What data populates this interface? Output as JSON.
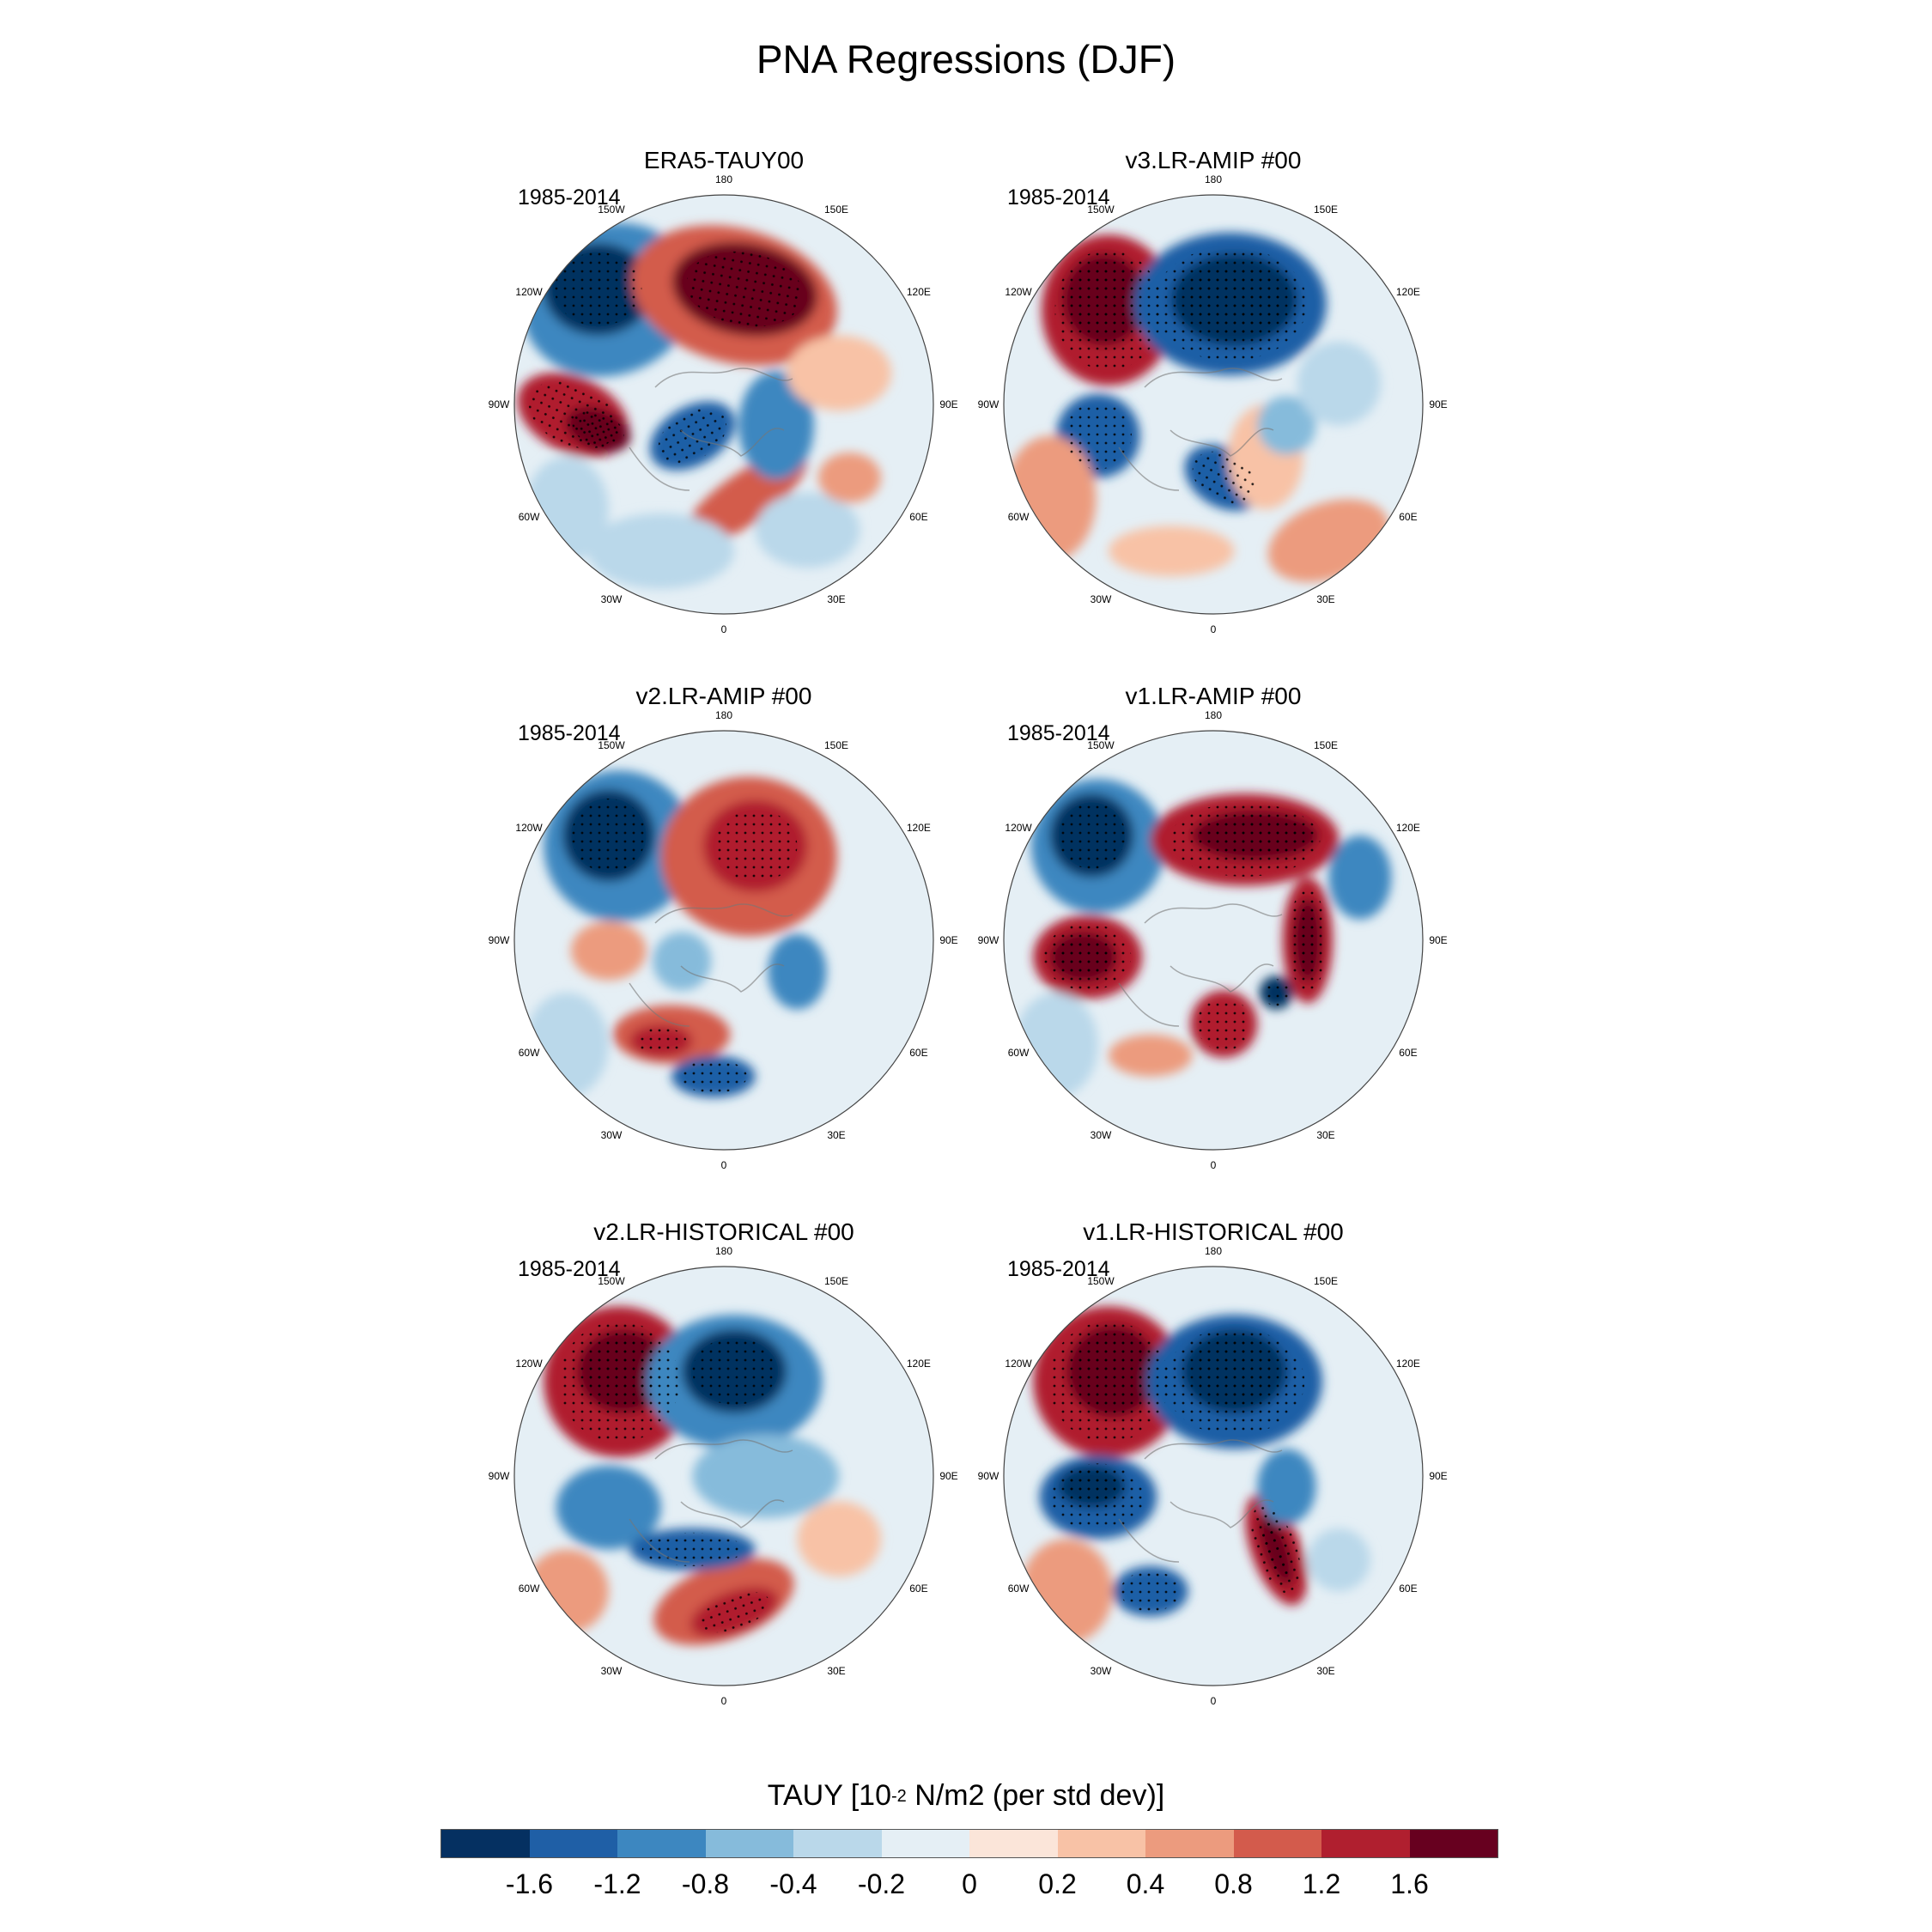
{
  "title": "PNA Regressions (DJF)",
  "panels": [
    {
      "title": "ERA5-TAUY00",
      "period": "1985-2014",
      "pattern": "obs"
    },
    {
      "title": "v3.LR-AMIP  #00",
      "period": "1985-2014",
      "pattern": "v3"
    },
    {
      "title": "v2.LR-AMIP  #00",
      "period": "1985-2014",
      "pattern": "v2a"
    },
    {
      "title": "v1.LR-AMIP  #00",
      "period": "1985-2014",
      "pattern": "v1a"
    },
    {
      "title": "v2.LR-HISTORICAL  #00",
      "period": "1985-2014",
      "pattern": "v2h"
    },
    {
      "title": "v1.LR-HISTORICAL  #00",
      "period": "1985-2014",
      "pattern": "v1h"
    }
  ],
  "lon_labels": [
    "180",
    "150E",
    "120E",
    "90E",
    "60E",
    "30E",
    "0",
    "30W",
    "60W",
    "90W",
    "120W",
    "150W"
  ],
  "colorbar": {
    "title_main": "TAUY [10",
    "title_sup": "-2",
    "title_rest": " N/m2 (per std dev)]",
    "colors": [
      "#053061",
      "#1f5fa6",
      "#3d87c0",
      "#86bbdb",
      "#bad8ea",
      "#e5eff5",
      "#fbe5d9",
      "#f8c2a6",
      "#ec9b7e",
      "#d35b4c",
      "#b01f2f",
      "#67001f"
    ],
    "labels": [
      "-1.6",
      "-1.2",
      "-0.8",
      "-0.4",
      "-0.2",
      "0",
      "0.2",
      "0.4",
      "0.8",
      "1.2",
      "1.6"
    ]
  }
}
